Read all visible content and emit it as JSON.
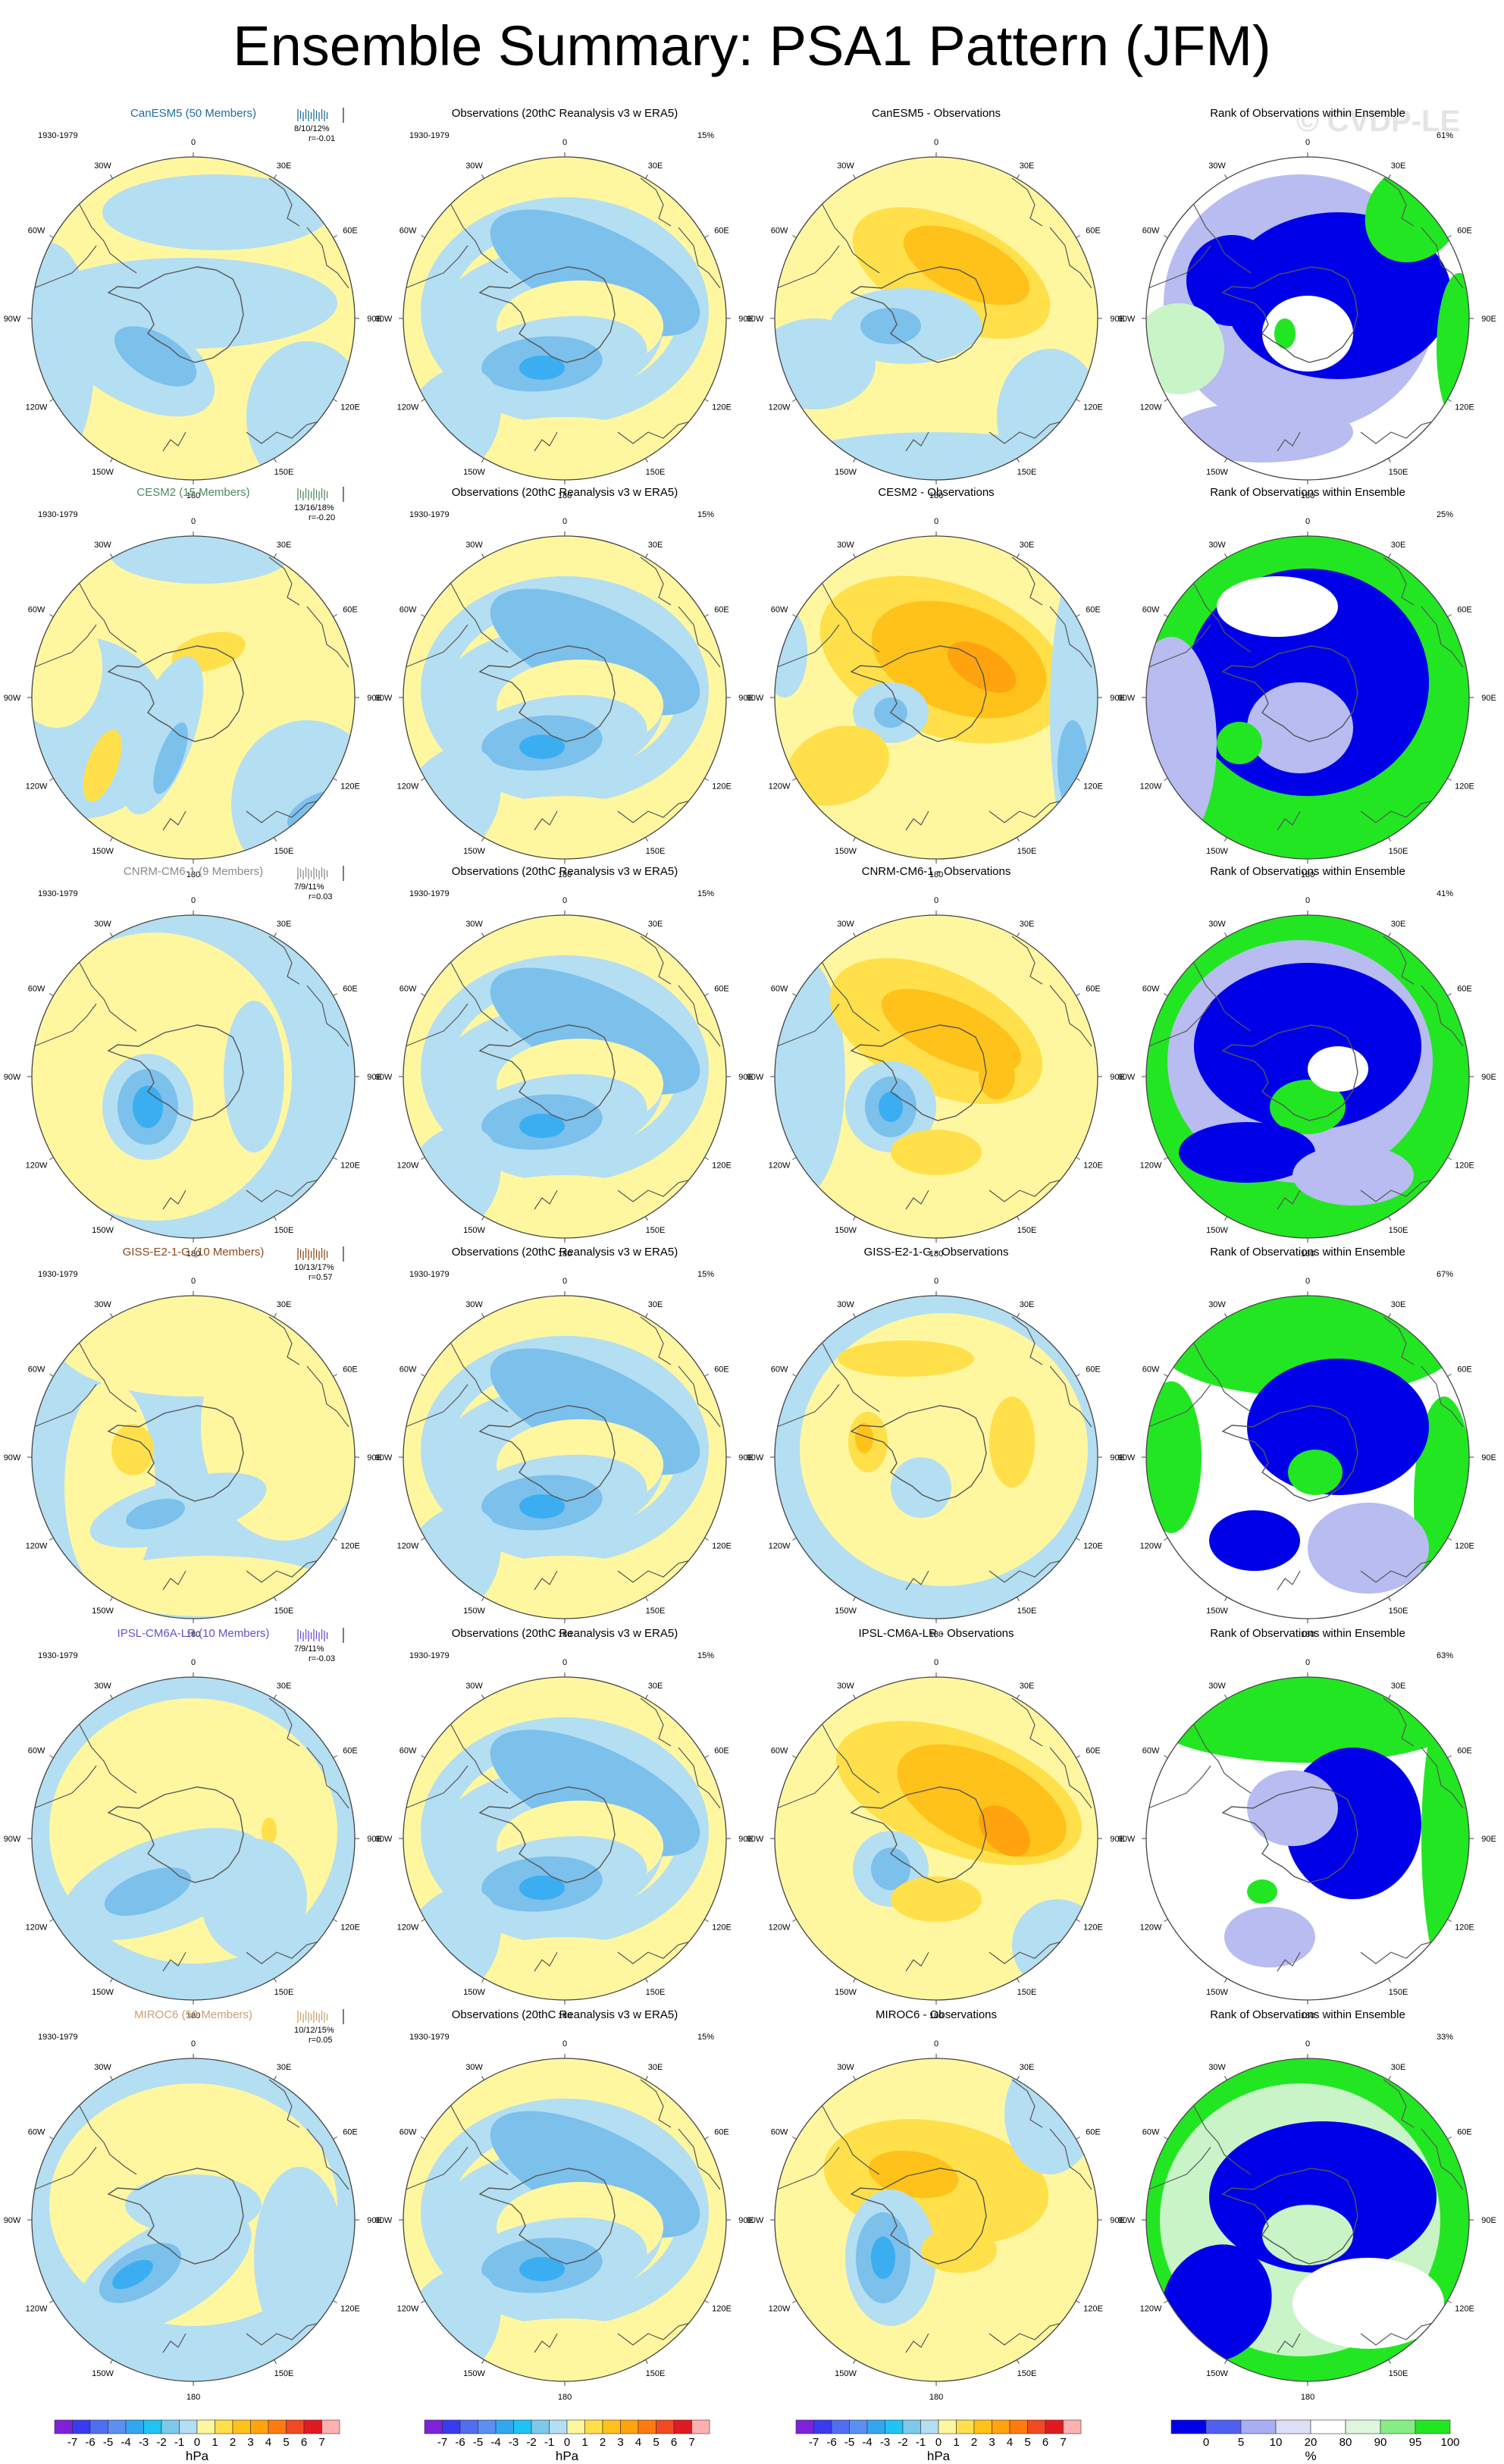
{
  "title": "Ensemble Summary: PSA1 Pattern (JFM)",
  "watermark": "© CVDP-LE",
  "period": "1930-1979",
  "obs_title": "Observations (20thC Reanalysis v3 w ERA5)",
  "obs_pct": "15%",
  "rank_title": "Rank of Observations within Ensemble",
  "lon_labels": [
    "0",
    "30E",
    "60E",
    "90E",
    "120E",
    "150E",
    "180",
    "150W",
    "120W",
    "90W",
    "60W",
    "30W"
  ],
  "rows": [
    {
      "model": "CanESM5 (50 Members)",
      "color": "#1f6e9a",
      "stats": "8/10/12%",
      "r": "r=-0.01",
      "diff_title": "CanESM5 - Observations",
      "rank_pct": "61%"
    },
    {
      "model": "CESM2 (15 Members)",
      "color": "#4d8a5e",
      "stats": "13/16/18%",
      "r": "r=-0.20",
      "diff_title": "CESM2 - Observations",
      "rank_pct": "25%"
    },
    {
      "model": "CNRM-CM6-1 (9 Members)",
      "color": "#8a8a8a",
      "stats": "7/9/11%",
      "r": "r=0.03",
      "diff_title": "CNRM-CM6-1 - Observations",
      "rank_pct": "41%"
    },
    {
      "model": "GISS-E2-1-G (10 Members)",
      "color": "#8a4a1e",
      "stats": "10/13/17%",
      "r": "r=0.57",
      "diff_title": "GISS-E2-1-G - Observations",
      "rank_pct": "67%"
    },
    {
      "model": "IPSL-CM6A-LR (10 Members)",
      "color": "#6b4fc8",
      "stats": "7/9/11%",
      "r": "r=-0.03",
      "diff_title": "IPSL-CM6A-LR - Observations",
      "rank_pct": "63%"
    },
    {
      "model": "MIROC6 (50 Members)",
      "color": "#c9a070",
      "stats": "10/12/15%",
      "r": "r=0.05",
      "diff_title": "MIROC6 - Observations",
      "rank_pct": "33%"
    }
  ],
  "colorbar_hpa": {
    "unit": "hPa",
    "ticks": [
      "-7",
      "-6",
      "-5",
      "-4",
      "-3",
      "-2",
      "-1",
      "0",
      "1",
      "2",
      "3",
      "4",
      "5",
      "6",
      "7"
    ],
    "colors": [
      "#7d22d8",
      "#3a3af0",
      "#4f6ff0",
      "#5b8ff2",
      "#33a6f0",
      "#1fc3f4",
      "#7cc9ec",
      "#b4def2",
      "#fff7a0",
      "#ffe04a",
      "#ffc21a",
      "#ffa30f",
      "#ff7a10",
      "#f24a20",
      "#e01a20",
      "#ffb0b0"
    ]
  },
  "colorbar_rank": {
    "unit": "%",
    "ticks": [
      "0",
      "5",
      "10",
      "20",
      "80",
      "90",
      "95",
      "100"
    ],
    "colors": [
      "#0000e8",
      "#5060f0",
      "#a8aef2",
      "#dcdff6",
      "#ffffff",
      "#ddf6dd",
      "#86ec86",
      "#22e622"
    ]
  },
  "palette": {
    "neg1": "#b4def2",
    "neg2": "#7cc0ec",
    "neg3": "#3aaef0",
    "neg4": "#1fc3f4",
    "pos1": "#fff7a0",
    "pos2": "#ffe04a",
    "pos3": "#ffc21a",
    "pos4": "#ffa30f",
    "rank_blue": "#0000e8",
    "rank_lightblue": "#b8bcf0",
    "rank_green": "#22e622",
    "rank_lightgreen": "#c8f4c8"
  }
}
